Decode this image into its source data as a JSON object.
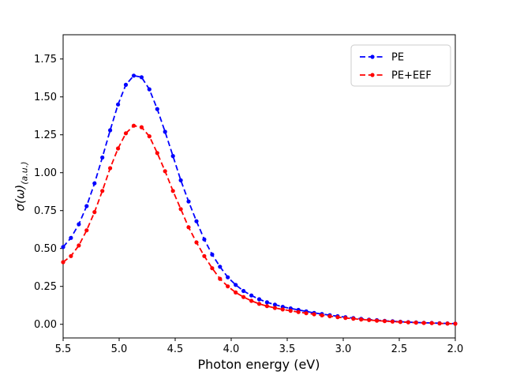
{
  "figure": {
    "background": "#ffffff"
  },
  "xlabel": "Photon energy (eV)",
  "ylabel": {
    "main": "σ(ω)",
    "sub": "(a.u.)"
  },
  "chart_data": {
    "type": "line",
    "title": "",
    "xlabel": "Photon energy (eV)",
    "ylabel": "σ(ω)(a.u.)",
    "x_axis_reversed": true,
    "xlim": [
      5.5,
      2.0
    ],
    "ylim": [
      -0.09,
      1.91
    ],
    "grid": false,
    "legend_position": "upper right",
    "xtick_labels": [
      "5.5",
      "5.0",
      "4.5",
      "4.0",
      "3.5",
      "3.0",
      "2.5",
      "2.0"
    ],
    "xticks": [
      5.5,
      5.0,
      4.5,
      4.0,
      3.5,
      3.0,
      2.5,
      2.0
    ],
    "ytick_labels": [
      "0.00",
      "0.25",
      "0.50",
      "0.75",
      "1.00",
      "1.25",
      "1.50",
      "1.75"
    ],
    "yticks": [
      0.0,
      0.25,
      0.5,
      0.75,
      1.0,
      1.25,
      1.5,
      1.75
    ],
    "x": [
      5.5,
      5.43,
      5.36,
      5.29,
      5.22,
      5.15,
      5.08,
      5.01,
      4.94,
      4.87,
      4.8,
      4.73,
      4.66,
      4.59,
      4.52,
      4.45,
      4.38,
      4.31,
      4.24,
      4.17,
      4.1,
      4.03,
      3.96,
      3.89,
      3.82,
      3.75,
      3.68,
      3.61,
      3.54,
      3.47,
      3.4,
      3.33,
      3.26,
      3.19,
      3.12,
      3.05,
      2.98,
      2.91,
      2.84,
      2.77,
      2.7,
      2.63,
      2.56,
      2.49,
      2.42,
      2.35,
      2.28,
      2.21,
      2.14,
      2.07,
      2.0
    ],
    "series": [
      {
        "name": "PE",
        "color": "#0000ff",
        "linestyle": "dashed",
        "marker": "dot",
        "values": [
          0.51,
          0.57,
          0.66,
          0.78,
          0.93,
          1.1,
          1.28,
          1.45,
          1.58,
          1.64,
          1.63,
          1.55,
          1.42,
          1.27,
          1.11,
          0.95,
          0.81,
          0.68,
          0.56,
          0.46,
          0.38,
          0.31,
          0.26,
          0.22,
          0.19,
          0.165,
          0.145,
          0.13,
          0.115,
          0.105,
          0.095,
          0.085,
          0.075,
          0.068,
          0.06,
          0.053,
          0.047,
          0.041,
          0.036,
          0.031,
          0.027,
          0.023,
          0.02,
          0.017,
          0.014,
          0.012,
          0.01,
          0.009,
          0.007,
          0.006,
          0.005
        ]
      },
      {
        "name": "PE+EEF",
        "color": "#ff0000",
        "linestyle": "dashed",
        "marker": "dot",
        "values": [
          0.41,
          0.45,
          0.52,
          0.62,
          0.74,
          0.88,
          1.03,
          1.16,
          1.26,
          1.31,
          1.3,
          1.24,
          1.13,
          1.01,
          0.88,
          0.76,
          0.64,
          0.54,
          0.45,
          0.37,
          0.3,
          0.25,
          0.21,
          0.18,
          0.155,
          0.135,
          0.12,
          0.108,
          0.098,
          0.089,
          0.081,
          0.073,
          0.066,
          0.059,
          0.053,
          0.047,
          0.042,
          0.037,
          0.032,
          0.028,
          0.024,
          0.021,
          0.018,
          0.015,
          0.013,
          0.011,
          0.009,
          0.008,
          0.006,
          0.005,
          0.004
        ]
      }
    ]
  }
}
